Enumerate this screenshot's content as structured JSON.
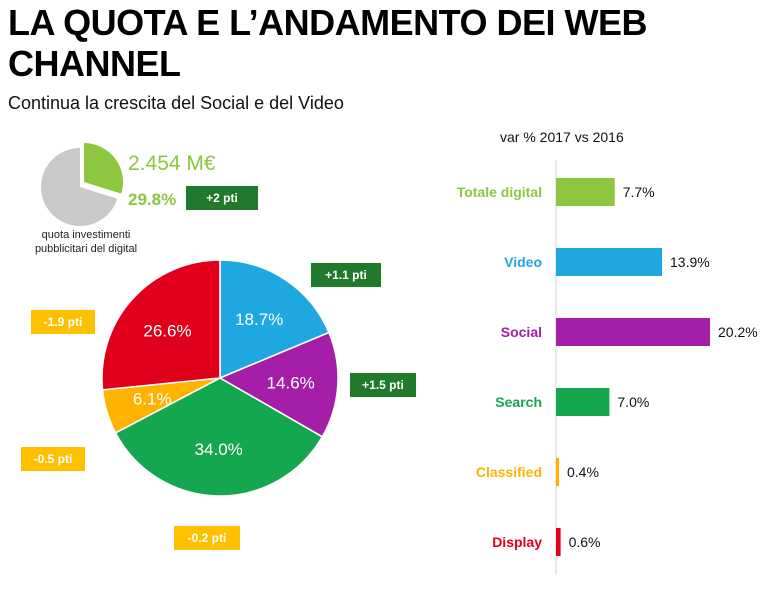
{
  "header": {
    "title": "LA QUOTA E L’ANDAMENTO DEI WEB CHANNEL",
    "subtitle": "Continua la crescita del Social e del Video"
  },
  "digital_share": {
    "total_value": "2.454 M€",
    "share_label": "29.8%",
    "share_fraction": 0.298,
    "delta": "+2 pti",
    "caption": "quota investimenti pubblicitari del digital",
    "colors": {
      "share": "#8dc63f",
      "rest": "#c9c9c9"
    }
  },
  "chart_data": [
    {
      "type": "pie",
      "slices": [
        {
          "name": "Video",
          "value": 18.7,
          "label": "18.7%",
          "delta": "+1.1 pti",
          "color": "#1ea7e1"
        },
        {
          "name": "Social",
          "value": 14.6,
          "label": "14.6%",
          "delta": "+1.5 pti",
          "color": "#a51ea7"
        },
        {
          "name": "Search",
          "value": 34.0,
          "label": "34.0%",
          "delta": "-0.2 pti",
          "color": "#15a650"
        },
        {
          "name": "Classified",
          "value": 6.1,
          "label": "6.1%",
          "delta": "-0.5 pti",
          "color": "#ffb300"
        },
        {
          "name": "Display",
          "value": 26.6,
          "label": "26.6%",
          "delta": "-1.9 pti",
          "color": "#e0001b"
        }
      ]
    },
    {
      "type": "bar",
      "orientation": "horizontal",
      "title": "var % 2017 vs 2016",
      "categories": [
        "Totale digital",
        "Video",
        "Social",
        "Search",
        "Classified",
        "Display"
      ],
      "values": [
        7.7,
        13.9,
        20.2,
        7.0,
        0.4,
        0.6
      ],
      "value_labels": [
        "7.7%",
        "13.9%",
        "20.2%",
        "7.0%",
        "0.4%",
        "0.6%"
      ],
      "colors": [
        "#8dc63f",
        "#1ea7e1",
        "#a51ea7",
        "#15a650",
        "#ffb300",
        "#e0001b"
      ],
      "xlim": [
        0,
        20.2
      ]
    }
  ]
}
